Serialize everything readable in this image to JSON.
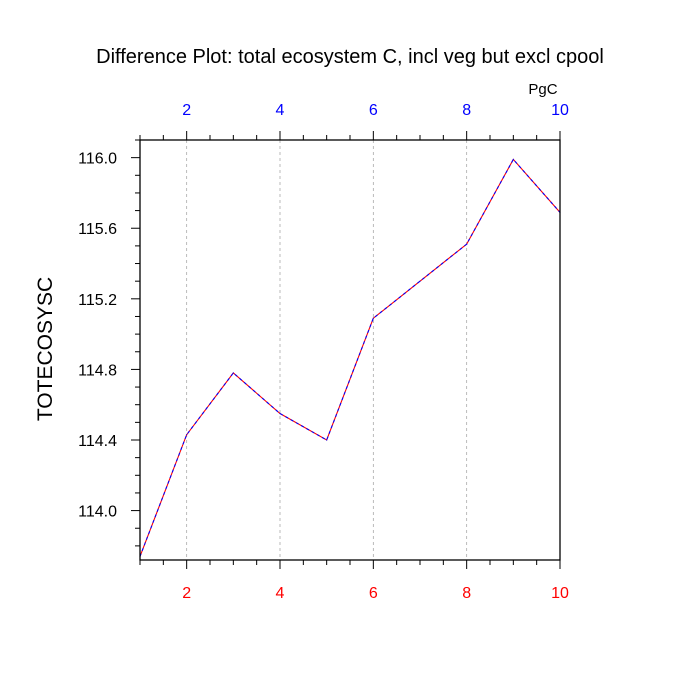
{
  "chart_data": {
    "type": "line",
    "title": "Difference Plot: total ecosystem C, incl veg but excl cpool",
    "ylabel": "TOTECOSYSC",
    "units": "PgC",
    "xlim": [
      1,
      10
    ],
    "ylim": [
      113.72,
      116.1
    ],
    "x_ticks": [
      2,
      4,
      6,
      8,
      10
    ],
    "y_ticks": [
      114.0,
      114.4,
      114.8,
      115.2,
      115.6,
      116.0
    ],
    "y_tick_labels": [
      "114.0",
      "114.4",
      "114.8",
      "115.2",
      "115.6",
      "116.0"
    ],
    "grid": "vertical dashed at x ticks",
    "series": [
      {
        "x": [
          1,
          2,
          3,
          4,
          5,
          6,
          7,
          8,
          9,
          10
        ],
        "values": [
          113.74,
          114.43,
          114.78,
          114.55,
          114.4,
          115.09,
          115.3,
          115.51,
          115.99,
          115.69
        ],
        "colors": [
          "#ff0000",
          "#0000ff"
        ]
      }
    ],
    "colors": {
      "bottom_axis_labels": "#ff0000",
      "top_axis_labels": "#0000ff",
      "frame": "#000000",
      "grid": "#aaaaaa"
    }
  }
}
